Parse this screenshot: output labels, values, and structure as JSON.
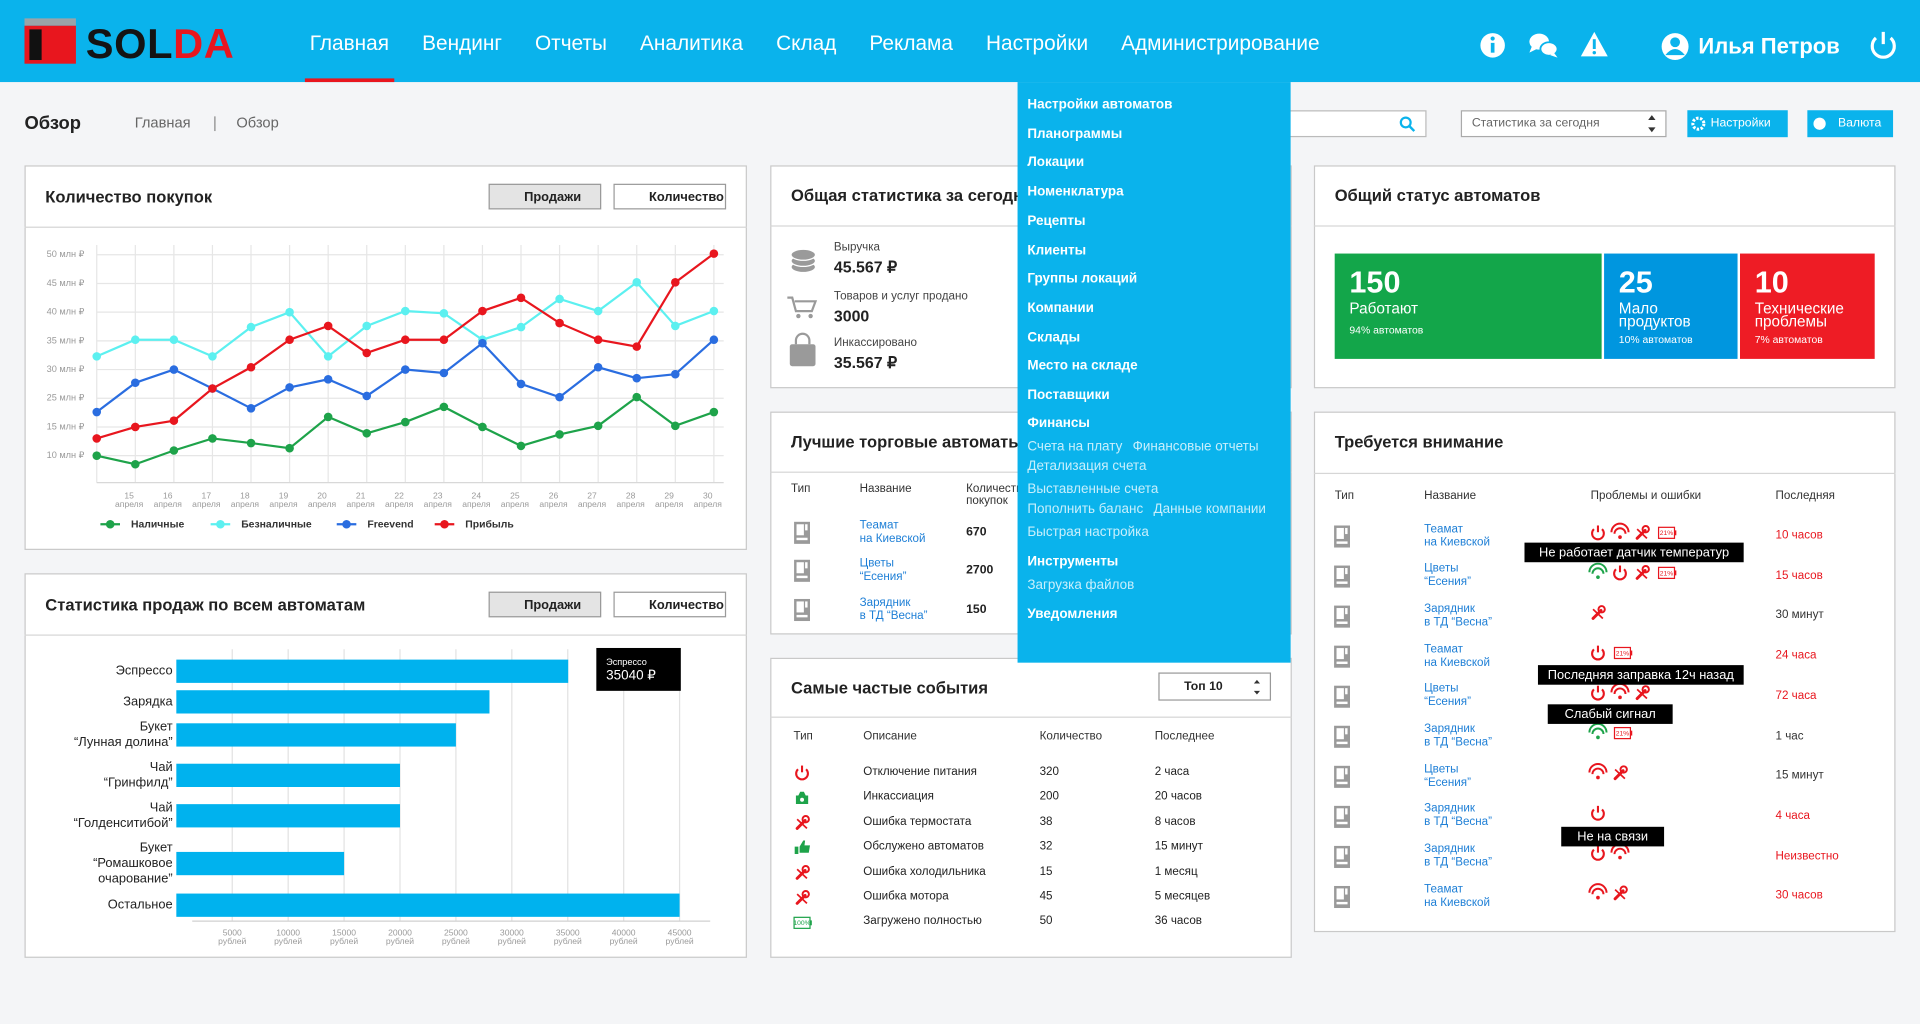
{
  "header": {
    "logo": "SOLDA",
    "nav": [
      "Главная",
      "Вендинг",
      "Отчеты",
      "Аналитика",
      "Склад",
      "Реклама",
      "Настройки",
      "Администрирование"
    ],
    "user": "Илья Петров"
  },
  "breadcrumb": {
    "title": "Обзор",
    "path": [
      "Главная",
      "Обзор"
    ]
  },
  "toolbar": {
    "period": "Статистика за сегодня",
    "settings": "Настройки",
    "currency": "Валюта"
  },
  "menu": {
    "items": [
      "Настройки автоматов",
      "Планограммы",
      "Локации",
      "Номенклатура",
      "Рецепты",
      "Клиенты",
      "Группы локаций",
      "Компании",
      "Склады",
      "Место на складе",
      "Поставщики"
    ],
    "finance": {
      "title": "Финансы",
      "links": [
        [
          "Счета на плату",
          "Финансовые отчеты"
        ],
        [
          "Детализация счета"
        ],
        [
          "Выставленные счета"
        ],
        [
          "Пополнить баланс",
          "Данные компании"
        ],
        [
          "Быстрая настройка"
        ]
      ]
    },
    "tools": {
      "title": "Инструменты",
      "links": [
        "Загрузка файлов"
      ]
    },
    "notifications": "Уведомления"
  },
  "purchases": {
    "title": "Количество покупок",
    "toggle": [
      "Продажи",
      "Количество"
    ],
    "chart_data": {
      "type": "line",
      "categories": [
        null,
        "15",
        "16",
        "17",
        "18",
        "19",
        "20",
        "21",
        "22",
        "23",
        "24",
        "25",
        "26",
        "27",
        "28",
        "29",
        "30"
      ],
      "month": "апреля",
      "ylim": [
        10,
        50
      ],
      "yticks": [
        {
          "value": 10,
          "label": "10 млн ₽"
        },
        {
          "value": 15,
          "label": "15 млн ₽"
        },
        {
          "value": 25,
          "label": "25 млн ₽"
        },
        {
          "value": 30,
          "label": "30 млн ₽"
        },
        {
          "value": 35,
          "label": "35 млн ₽"
        },
        {
          "value": 40,
          "label": "40 млн ₽"
        },
        {
          "value": 45,
          "label": "45 млн ₽"
        },
        {
          "value": 50,
          "label": "50 млн ₽"
        }
      ],
      "grid": true,
      "series": [
        {
          "name": "Наличные",
          "color": "#1ea34a",
          "values": [
            10,
            8.5,
            10.9,
            13,
            12.2,
            11.3,
            18.5,
            13.9,
            16.7,
            22,
            15,
            11.7,
            13.7,
            15.4,
            25.2,
            15.4,
            20.2
          ]
        },
        {
          "name": "Безналичные",
          "color": "#5cf0f0",
          "values": [
            32.3,
            35.2,
            35.2,
            32.3,
            37.4,
            40,
            32.3,
            37.6,
            40.2,
            39.8,
            35.2,
            37.4,
            42.3,
            40.2,
            45.2,
            37.6,
            40.2
          ]
        },
        {
          "name": "Freevend",
          "color": "#2a6de0",
          "values": [
            20.2,
            27.7,
            30,
            26.7,
            21.5,
            26.9,
            28.3,
            25.4,
            30,
            29.4,
            34.6,
            27.5,
            25.2,
            30.4,
            28.5,
            29.2,
            35.2
          ]
        },
        {
          "name": "Прибыль",
          "color": "#e8161e",
          "values": [
            13,
            15,
            17.2,
            26.7,
            30.4,
            35.2,
            37.6,
            32.9,
            35.2,
            35.2,
            40.2,
            42.5,
            38.1,
            35.2,
            34,
            45.2,
            50.2
          ]
        }
      ]
    }
  },
  "sales": {
    "title": "Статистика продаж по всем автоматам",
    "toggle": [
      "Продажи",
      "Количество"
    ],
    "chart_data": {
      "type": "bar",
      "orientation": "horizontal",
      "categories": [
        [
          "Эспрессо"
        ],
        [
          "Зарядка"
        ],
        [
          "Букет",
          "“Лунная долина”"
        ],
        [
          "Чай",
          "“Гринфилд”"
        ],
        [
          "Чай",
          "“Голденситибой”"
        ],
        [
          "Букет",
          "“Ромашковое",
          "очарование”"
        ],
        [
          "Остальное"
        ]
      ],
      "values": [
        35040,
        28000,
        25000,
        20000,
        20000,
        15000,
        45000
      ],
      "color": "#00b2ee",
      "xlim": [
        0,
        45000
      ],
      "xticks": [
        5000,
        10000,
        15000,
        20000,
        25000,
        30000,
        35000,
        40000,
        45000
      ],
      "x_unit": "рублей",
      "grid": true,
      "tooltip": {
        "category": "Эспрессо",
        "label": "35040 ₽"
      }
    }
  },
  "summary": {
    "title": "Общая статистика за сегодня",
    "items": [
      {
        "label": "Выручка",
        "value": "45.567 ₽"
      },
      {
        "label": "Товаров и услуг продано",
        "value": "3000"
      },
      {
        "label": "Инкассировано",
        "value": "35.567 ₽"
      }
    ]
  },
  "top_machines": {
    "title": "Лучшие торговые автоматы",
    "columns": [
      [
        "Тип"
      ],
      [
        "Название"
      ],
      [
        "Количество",
        "покупок"
      ]
    ],
    "rows": [
      {
        "name": [
          "Теамат",
          "на Киевской"
        ],
        "count": 670
      },
      {
        "name": [
          "Цветы",
          "“Есения”"
        ],
        "count": 2700
      },
      {
        "name": [
          "Зарядник",
          "в ТД “Весна”"
        ],
        "count": 150
      }
    ]
  },
  "events": {
    "title": "Самые частые события",
    "select": "Топ 10",
    "columns": [
      "Тип",
      "Описание",
      "Количество",
      "Последнее"
    ],
    "rows": [
      {
        "description": "Отключение питания",
        "count": 320,
        "last": "2 часа"
      },
      {
        "description": "Инкассиация",
        "count": 200,
        "last": "20 часов"
      },
      {
        "description": "Ошибка термостата",
        "count": 38,
        "last": "8 часов"
      },
      {
        "description": "Обслужено автоматов",
        "count": 32,
        "last": "15 минут"
      },
      {
        "description": "Ошибка холодильника",
        "count": 15,
        "last": "1 месяц"
      },
      {
        "description": "Ошибка мотора",
        "count": 45,
        "last": "5 месяцев"
      },
      {
        "description": "Загружено полностью",
        "count": 50,
        "last": "36 часов",
        "badge": "100%"
      }
    ]
  },
  "status": {
    "title": "Общий статус автоматов",
    "tiles": [
      {
        "count": 150,
        "label": [
          "Работают"
        ],
        "share": "94% автоматов",
        "color": "#13a64a"
      },
      {
        "count": 25,
        "label": [
          "Мало",
          "продуктов"
        ],
        "share": "10% автоматов",
        "color": "#0096df"
      },
      {
        "count": 10,
        "label": [
          "Технические",
          "проблемы"
        ],
        "share": "7% автоматов",
        "color": "#ee1c25"
      }
    ]
  },
  "attention": {
    "title": "Требуется внимание",
    "columns": [
      "Тип",
      "Название",
      "Проблемы и ошибки",
      "Последняя"
    ],
    "rows": [
      {
        "name": [
          "Теамат",
          "на Киевской"
        ],
        "last": "10 часов",
        "alert": true,
        "badge": "21%"
      },
      {
        "name": [
          "Цветы",
          "“Есения”"
        ],
        "last": "15 часов",
        "alert": true,
        "badge": "21%"
      },
      {
        "name": [
          "Зарядник",
          "в ТД “Весна”"
        ],
        "last": "30 минут",
        "alert": false
      },
      {
        "name": [
          "Теамат",
          "на Киевской"
        ],
        "last": "24 часа",
        "alert": true,
        "badge": "21%"
      },
      {
        "name": [
          "Цветы",
          "“Есения”"
        ],
        "last": "72 часа",
        "alert": true
      },
      {
        "name": [
          "Зарядник",
          "в ТД “Весна”"
        ],
        "last": "1 час",
        "alert": false,
        "badge": "21%"
      },
      {
        "name": [
          "Цветы",
          "“Есения”"
        ],
        "last": "15 минут",
        "alert": false
      },
      {
        "name": [
          "Зарядник",
          "в ТД “Весна”"
        ],
        "last": "4 часа",
        "alert": true
      },
      {
        "name": [
          "Зарядник",
          "в ТД “Весна”"
        ],
        "last": "Неизвестно",
        "alert": true
      },
      {
        "name": [
          "Теамат",
          "на Киевской"
        ],
        "last": "30 часов",
        "alert": true
      }
    ],
    "tooltips": [
      "Не работает датчик температур",
      "Последняя заправка 12ч назад",
      "Слабый сигнал",
      "Не на связи"
    ]
  }
}
